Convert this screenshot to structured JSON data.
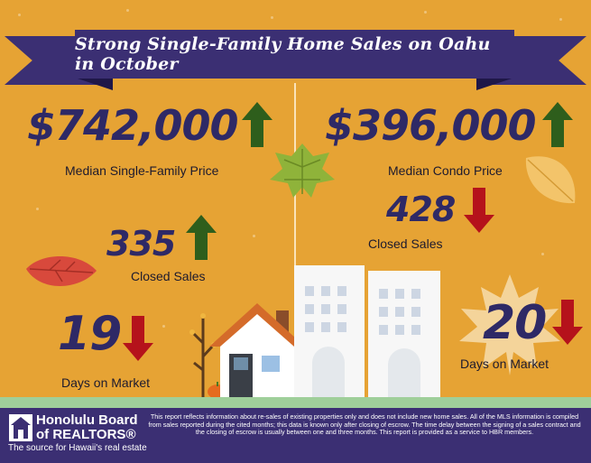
{
  "title": "Strong Single-Family Home Sales on Oahu in October",
  "single_family": {
    "median_price": "$742,000",
    "median_price_label": "Median Single-Family Price",
    "closed_sales": "335",
    "closed_sales_label": "Closed Sales",
    "days_on_market": "19",
    "days_on_market_label": "Days on Market"
  },
  "condo": {
    "median_price": "$396,000",
    "median_price_label": "Median Condo Price",
    "closed_sales": "428",
    "closed_sales_label": "Closed Sales",
    "days_on_market": "20",
    "days_on_market_label": "Days on Market"
  },
  "footer": {
    "logo_name": "Honolulu Board of REALTORS®",
    "logo_tagline": "The source for Hawaii's real estate",
    "disclaimer": "This report reflects information about re-sales of existing properties only and does not include new home sales. All of the MLS information is compiled from sales reported during the cited months; this data is known only after closing of escrow. The time delay between the signing of a sales contract and the closing of escrow is usually between one and three months. This report is provided as a service to HBR members."
  },
  "icons": {
    "up": "arrow-up-icon",
    "down": "arrow-down-icon"
  },
  "colors": {
    "background": "#e6a334",
    "navy": "#3b2f73",
    "up_arrow": "#2e5e1c",
    "down_arrow": "#b5121b",
    "stat_text": "#2e2966"
  }
}
